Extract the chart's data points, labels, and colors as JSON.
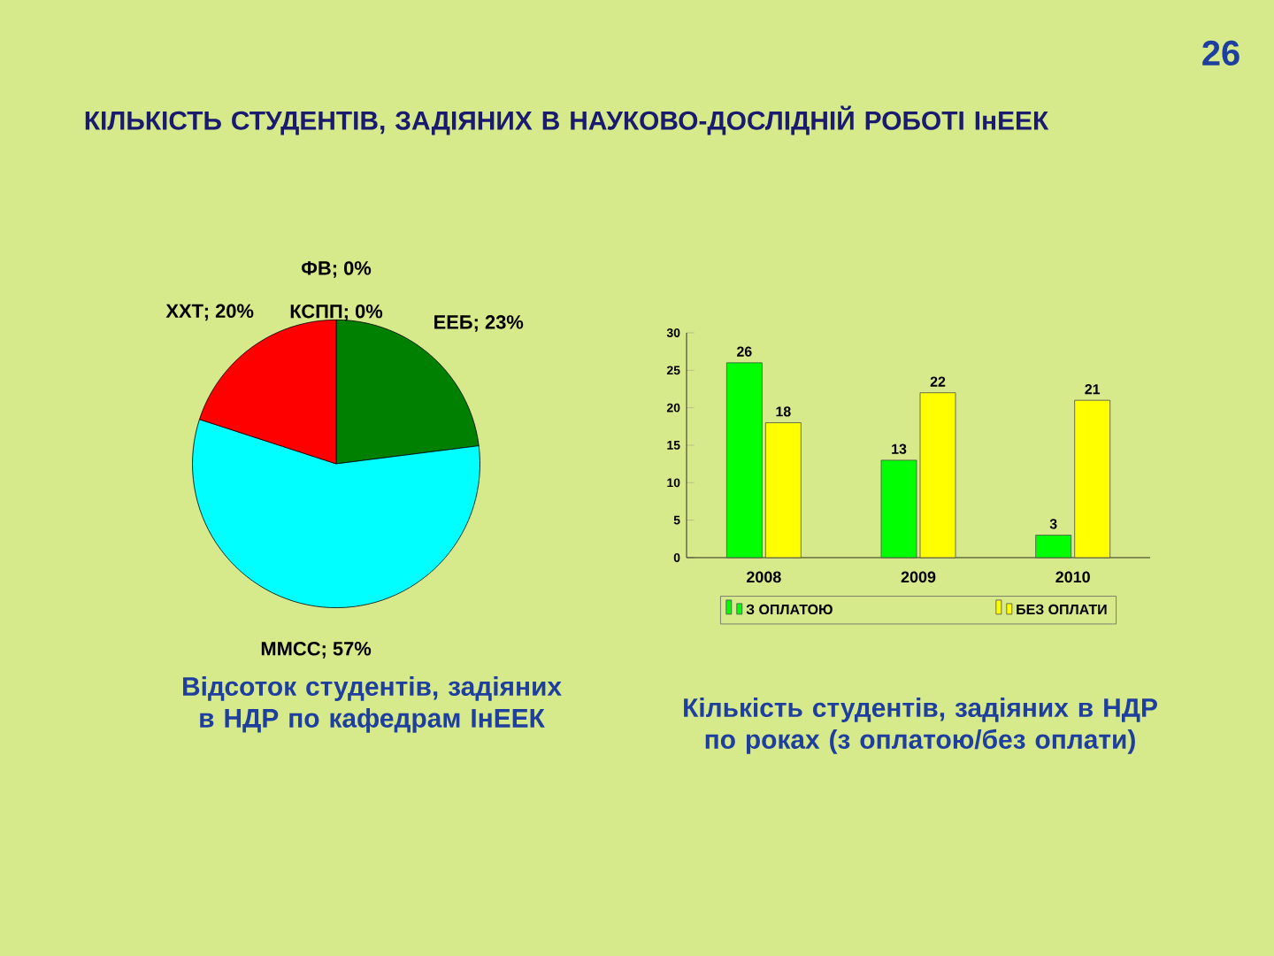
{
  "chart_data": [
    {
      "type": "pie",
      "title": "КІЛЬКІСТЬ СТУДЕНТІВ, ЗАДІЯНИХ В НАУКОВО-ДОСЛІДНІЙ РОБОТІ ІнЕЕК",
      "categories": [
        "ЕЕБ; 23%",
        "ММСС; 57%",
        "ХХТ; 20%",
        "ФВ; 0%",
        "КСПП; 0%"
      ],
      "values": [
        23,
        57,
        20,
        0,
        0
      ],
      "colors": [
        "#008000",
        "#00ffff",
        "#ff0000",
        "#0000ff",
        "#800080"
      ],
      "annotations": [
        "Відсоток студентів, задіяних в НДР по кафедрам ІнЕЕК",
        "26"
      ]
    },
    {
      "type": "bar",
      "categories": [
        "2008",
        "2009",
        "2010"
      ],
      "series": [
        {
          "name": "З ОПЛАТОЮ",
          "color": "#00ff00",
          "values": [
            26,
            13,
            3
          ]
        },
        {
          "name": "БЕЗ ОПЛАТИ",
          "color": "#ffff00",
          "values": [
            18,
            22,
            21
          ]
        }
      ],
      "ylim": [
        0,
        30
      ],
      "yticks": [
        0,
        5,
        10,
        15,
        20,
        25,
        30
      ],
      "data_labels": true,
      "legend": "bottom",
      "annotations": [
        "Кількість студентів, задіяних в НДР по роках (з оплатою/без оплати)"
      ]
    }
  ]
}
